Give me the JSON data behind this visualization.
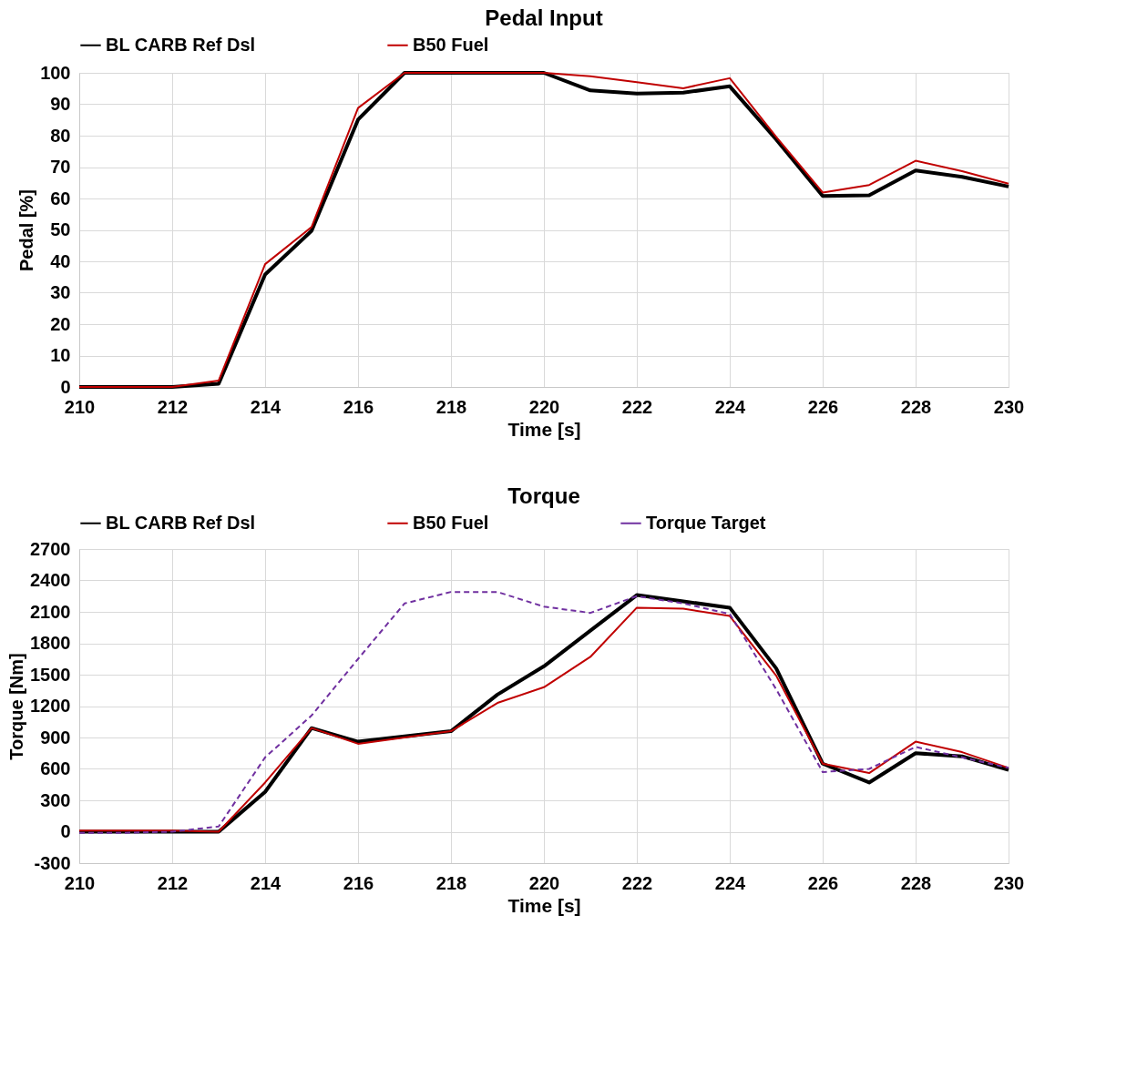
{
  "chart_data": [
    {
      "type": "line",
      "title": "Pedal Input",
      "xlabel": "Time [s]",
      "ylabel": "Pedal [%]",
      "x": [
        210,
        211,
        212,
        213,
        214,
        215,
        216,
        217,
        218,
        219,
        220,
        221,
        222,
        223,
        224,
        225,
        226,
        227,
        228,
        229,
        230
      ],
      "xlim": [
        210,
        230
      ],
      "xticks": [
        210,
        212,
        214,
        216,
        218,
        220,
        222,
        224,
        226,
        228,
        230
      ],
      "ylim": [
        0,
        100
      ],
      "yticks": [
        0,
        10,
        20,
        30,
        40,
        50,
        60,
        70,
        80,
        90,
        100
      ],
      "grid": true,
      "legend": "top",
      "marker": "none",
      "series": [
        {
          "name": "BL CARB Ref Dsl",
          "color": "#000000",
          "line_style": "solid",
          "values": [
            0,
            0,
            0,
            1,
            35.8,
            49.7,
            85.1,
            100,
            100,
            100,
            100,
            94.4,
            93.4,
            93.7,
            95.7,
            78.8,
            60.8,
            61,
            68.9,
            66.9,
            63.8
          ]
        },
        {
          "name": "B50 Fuel",
          "color": "#c00000",
          "line_style": "solid",
          "values": [
            0,
            0,
            0,
            2,
            39.1,
            50.9,
            88.8,
            100,
            100,
            100,
            100,
            98.9,
            97,
            95.1,
            98.3,
            79.6,
            61.9,
            64.3,
            72,
            68.7,
            64.7
          ]
        }
      ]
    },
    {
      "type": "line",
      "title": "Torque",
      "xlabel": "Time [s]",
      "ylabel": "Torque [Nm]",
      "x": [
        210,
        211,
        212,
        213,
        214,
        215,
        216,
        217,
        218,
        219,
        220,
        221,
        222,
        223,
        224,
        225,
        226,
        227,
        228,
        229,
        230
      ],
      "xlim": [
        210,
        230
      ],
      "xticks": [
        210,
        212,
        214,
        216,
        218,
        220,
        222,
        224,
        226,
        228,
        230
      ],
      "ylim": [
        -300,
        2700
      ],
      "yticks": [
        -300,
        0,
        300,
        600,
        900,
        1200,
        1500,
        1800,
        2100,
        2400,
        2700
      ],
      "grid": true,
      "legend": "top",
      "marker": "none",
      "series": [
        {
          "name": "BL CARB Ref Dsl",
          "color": "#000000",
          "line_style": "solid",
          "values": [
            0,
            0,
            0,
            0,
            380,
            990,
            860,
            910,
            960,
            1310,
            1580,
            1920,
            2260,
            2200,
            2140,
            1560,
            650,
            470,
            750,
            720,
            590
          ]
        },
        {
          "name": "B50 Fuel",
          "color": "#c00000",
          "line_style": "solid",
          "values": [
            10,
            10,
            10,
            0,
            470,
            990,
            840,
            900,
            960,
            1230,
            1380,
            1670,
            2140,
            2130,
            2060,
            1490,
            650,
            560,
            860,
            760,
            610
          ]
        },
        {
          "name": "Torque Target",
          "color": "#7030a0",
          "line_style": "dashed",
          "values": [
            -10,
            -10,
            0,
            50,
            710,
            1110,
            1650,
            2180,
            2290,
            2290,
            2150,
            2090,
            2250,
            2180,
            2080,
            1360,
            570,
            600,
            810,
            710,
            610
          ]
        }
      ]
    }
  ]
}
